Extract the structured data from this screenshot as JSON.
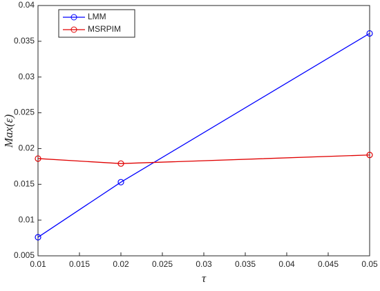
{
  "chart_data": {
    "type": "line",
    "x_label": "τ",
    "y_label": "Max(ε)",
    "x": [
      0.01,
      0.02,
      0.05
    ],
    "series": [
      {
        "name": "LMM",
        "color": "#0000ff",
        "values": [
          0.0076,
          0.0153,
          0.0361
        ]
      },
      {
        "name": "MSRPIM",
        "color": "#e00000",
        "values": [
          0.0186,
          0.0179,
          0.0191
        ]
      }
    ],
    "xlim": [
      0.01,
      0.05
    ],
    "xticks": [
      0.01,
      0.015,
      0.02,
      0.025,
      0.03,
      0.035,
      0.04,
      0.045,
      0.05
    ],
    "ylim": [
      0.005,
      0.04
    ],
    "yticks": [
      0.005,
      0.01,
      0.015,
      0.02,
      0.025,
      0.03,
      0.035,
      0.04
    ],
    "legend": "upper-left",
    "grid": false
  }
}
